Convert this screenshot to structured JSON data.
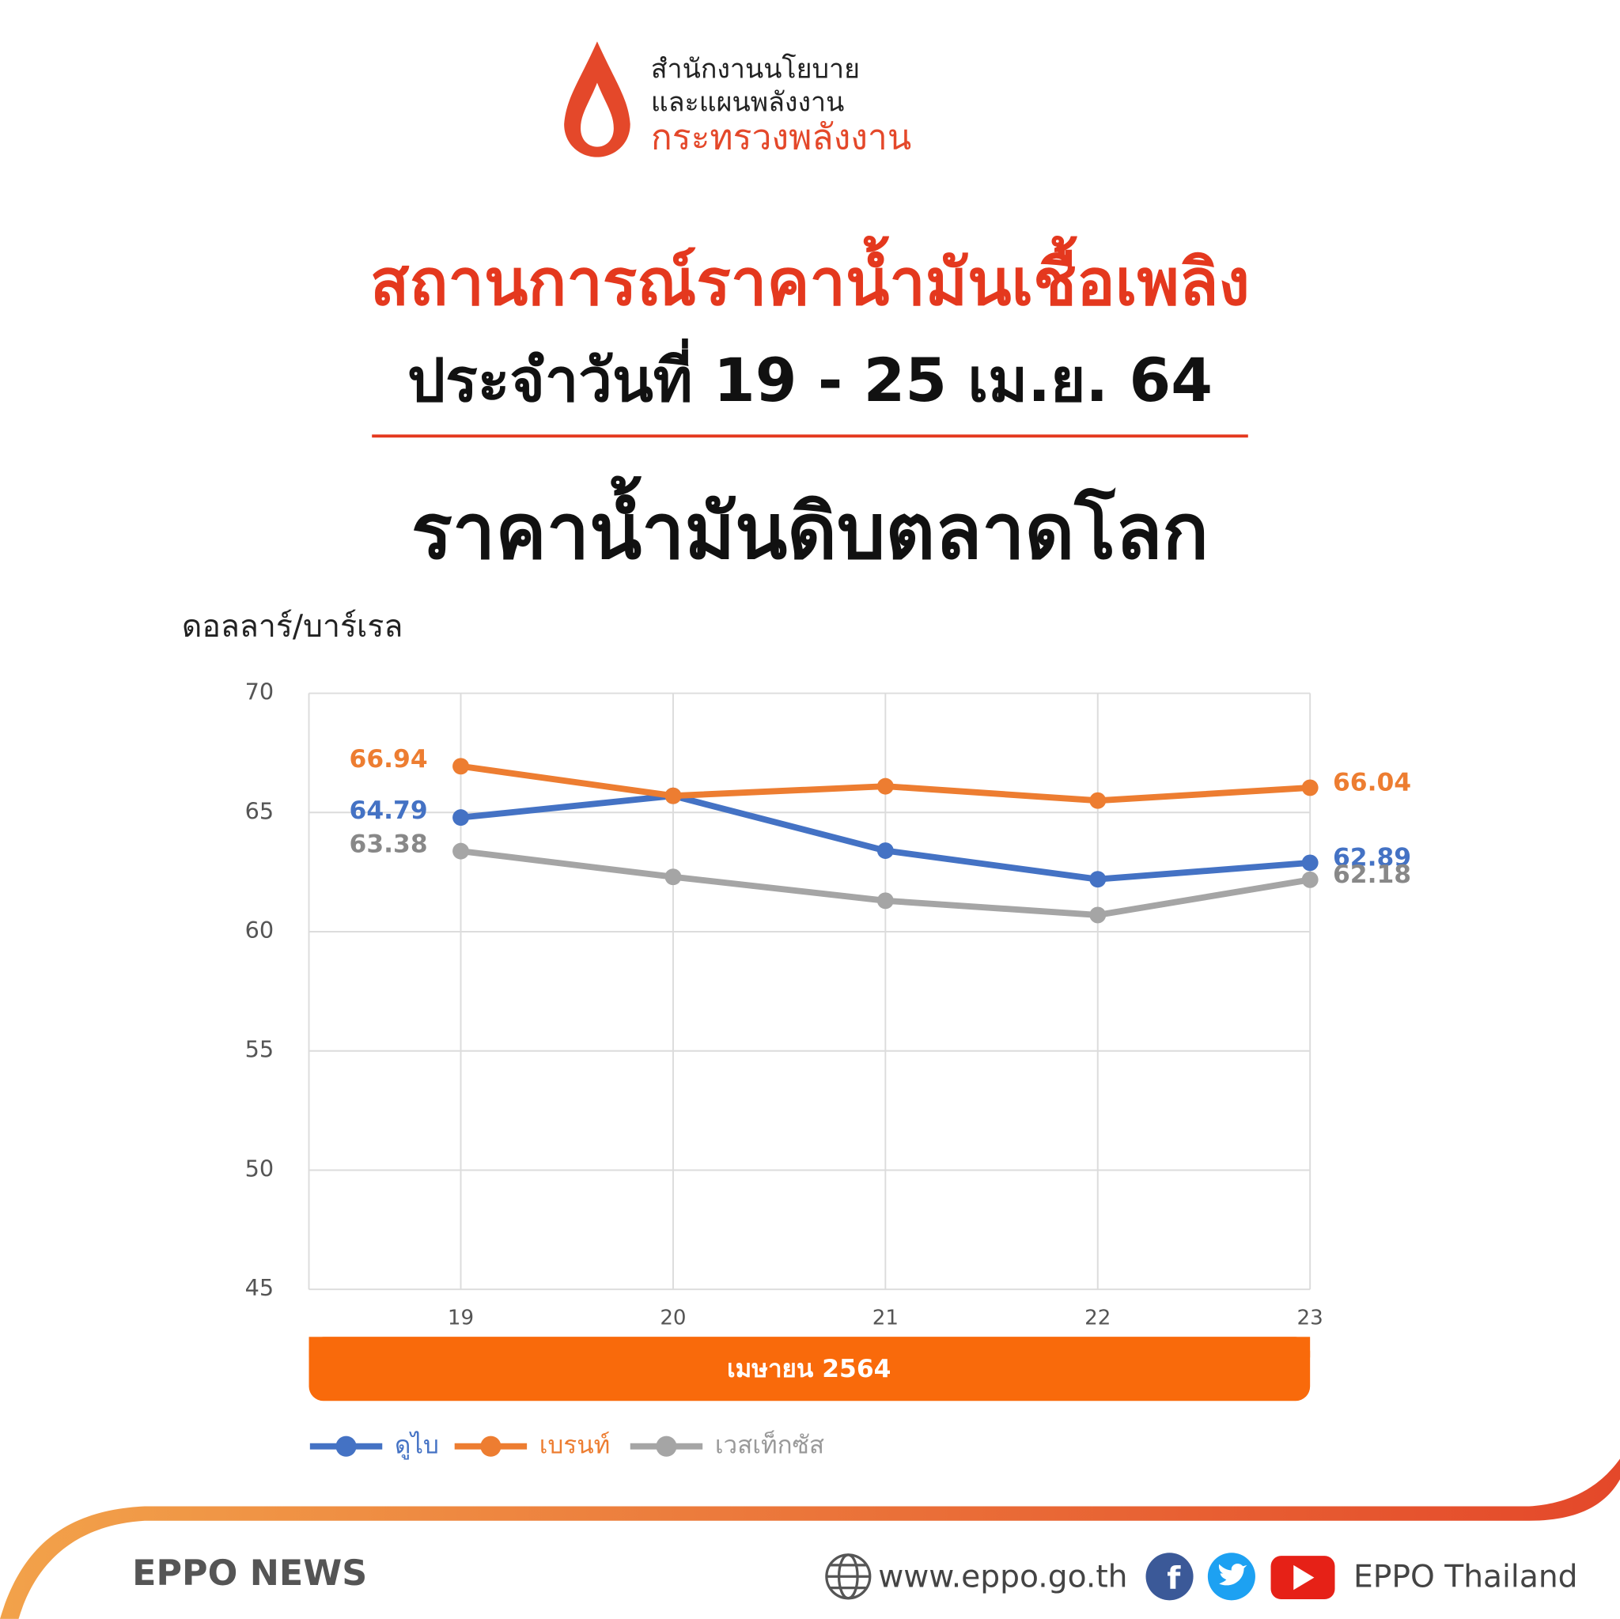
{
  "header": {
    "org_line1": "สำนักงานนโยบาย",
    "org_line2": "และแผนพลังงาน",
    "org_line3": "กระทรวงพลังงาน",
    "title": "สถานการณ์ราคาน้ำมันเชื้อเพลิง",
    "subtitle": "ประจำวันที่ 19 - 25 เม.ย. 64",
    "heading": "ราคาน้ำมันดิบตลาดโลก"
  },
  "chart_data": {
    "type": "line",
    "y_label": "ดอลลาร์/บาร์เรล",
    "x_label": "เมษายน 2564",
    "categories": [
      "19",
      "20",
      "21",
      "22",
      "23"
    ],
    "ylim": [
      45,
      70
    ],
    "yticks": [
      45,
      50,
      55,
      60,
      65,
      70
    ],
    "grid": true,
    "series": [
      {
        "name": "ดูไบ",
        "color": "#4472c4",
        "values": [
          64.79,
          65.7,
          63.4,
          62.2,
          62.89
        ]
      },
      {
        "name": "เบรนท์",
        "color": "#ed7d31",
        "values": [
          66.94,
          65.7,
          66.1,
          65.5,
          66.04
        ]
      },
      {
        "name": "เวสเท็กซัส",
        "color": "#a5a5a5",
        "values": [
          63.38,
          62.3,
          61.3,
          60.7,
          62.18
        ]
      }
    ]
  },
  "footer": {
    "brand": "EPPO NEWS",
    "website": "www.eppo.go.th",
    "social": "EPPO Thailand"
  }
}
